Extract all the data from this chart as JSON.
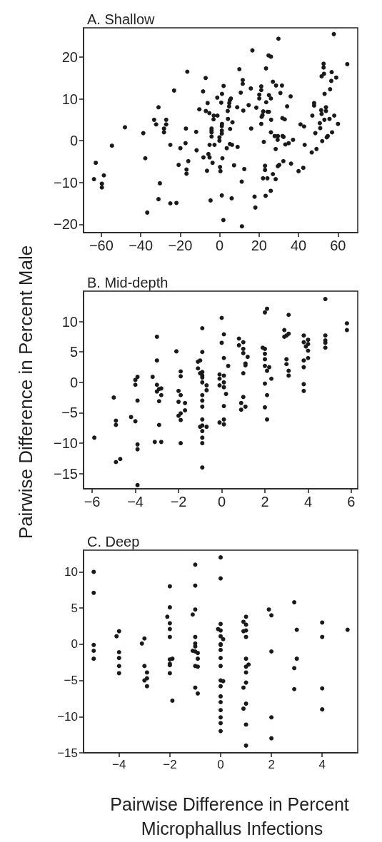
{
  "chart_data": [
    {
      "type": "scatter",
      "title": "A. Shallow",
      "color": "#1a1a1a",
      "marker": "circle",
      "xlim": [
        -69,
        70
      ],
      "xticks": [
        -60,
        -40,
        -20,
        0,
        20,
        40,
        60
      ],
      "ylim": [
        -22,
        27
      ],
      "yticks": [
        -20,
        -10,
        0,
        10,
        20
      ],
      "x": [
        -16.4,
        -7.1,
        -23.1,
        -8.4,
        -1.2,
        -6.1,
        -31.0,
        -10.3,
        -7.0,
        -5.2,
        -3.0,
        -1.1,
        -3.1,
        -33.2,
        -27.1,
        -32.2,
        -27.1,
        -48.0,
        -28.2,
        -17.1,
        -4.1,
        -4.1,
        -28.2,
        -11.9,
        -38.7,
        -4.1,
        -0.1,
        -0.1,
        -25.0,
        -17.3,
        -54.6,
        -5.1,
        -2.6,
        -19.9,
        -11.7,
        -5.7,
        -8.2,
        -5.1,
        -37.7,
        -15.9,
        -62.8,
        -3.6,
        -20.8,
        -16.8,
        -6.4,
        -16.8,
        -58.7,
        -63.7,
        -59.7,
        -59.7,
        -30.3,
        -31.0,
        -4.6,
        -25.0,
        -21.9,
        -36.7,
        57.9,
        29.8,
        16.6,
        24.8,
        26.0,
        64.7,
        52.7,
        52.7,
        23.5,
        10.0,
        56.8,
        52.9,
        51.7,
        59.1,
        11.7,
        11.7,
        56.6,
        27.0,
        28.6,
        31.6,
        2.0,
        21.1,
        15.8,
        21.1,
        56.0,
        10.7,
        30.8,
        1.2,
        53.2,
        20.1,
        25.0,
        36.0,
        5.7,
        20.1,
        26.0,
        5.2,
        0.8,
        23.6,
        4.9,
        47.9,
        47.9,
        4.8,
        14.7,
        8.9,
        34.2,
        18.6,
        12.0,
        53.9,
        51.5,
        53.9,
        51.7,
        4.1,
        22.1,
        24.3,
        25.0,
        21.7,
        21.3,
        4.2,
        31.8,
        33.0,
        47.0,
        53.1,
        58.1,
        55.7,
        26.1,
        6.5,
        1.2,
        1.1,
        21.1,
        50.8,
        60.0,
        41.0,
        42.8,
        16.0,
        5.3,
        51.0,
        -4.1,
        1.1,
        26.0,
        48.5,
        57.0,
        1.1,
        27.9,
        29.5,
        31.9,
        32.4,
        29.4,
        37.2,
        54.8,
        54.3,
        52.0,
        22.4,
        5.2,
        6.3,
        9.1,
        33.3,
        35.0,
        43.1,
        3.6,
        28.4,
        46.7,
        49.1,
        1.4,
        32.3,
        30.2,
        29.5,
        36.2,
        7.3,
        0.2,
        23.0,
        23.0,
        12.5,
        0.4,
        42.4,
        40.0,
        27.0,
        22.0,
        24.2,
        28.4,
        11.2,
        25.9,
        1.1,
        6.1,
        23.3,
        17.7,
        18.1,
        1.9,
        11.3
      ],
      "values": [
        16.5,
        15.0,
        12.0,
        11.8,
        10.3,
        9.0,
        8.0,
        7.5,
        7.1,
        6.6,
        6.0,
        6.0,
        5.1,
        5.0,
        5.0,
        3.9,
        3.9,
        3.2,
        2.9,
        2.9,
        2.9,
        2.0,
        2.0,
        2.1,
        1.8,
        1.0,
        0.8,
        0,
        -1.0,
        -0.6,
        -1.2,
        -1.0,
        -1.0,
        -1.8,
        -2.3,
        -3.2,
        -4.0,
        -4.0,
        -4.2,
        -4.9,
        -5.3,
        -5.3,
        -5.8,
        -6.9,
        -7.2,
        -7.9,
        -8.3,
        -9.2,
        -10.3,
        -11.2,
        -10.2,
        -14.0,
        -14.3,
        -15.0,
        -14.9,
        -17.2,
        25.5,
        24.4,
        21.6,
        20.4,
        20.1,
        18.3,
        18.4,
        17.5,
        17.3,
        17.1,
        16.4,
        16.0,
        15.4,
        15.1,
        14.5,
        13.6,
        14.3,
        14.1,
        13.2,
        13.2,
        13.1,
        13.0,
        12.5,
        12.1,
        12.3,
        11.5,
        11.4,
        11.2,
        11.2,
        11.0,
        10.9,
        10.6,
        10.1,
        10.1,
        10.1,
        9.7,
        9.1,
        9.2,
        9.0,
        9.0,
        8.4,
        8.2,
        8.5,
        8.0,
        8.2,
        7.9,
        7.2,
        8.0,
        7.3,
        7.1,
        6.4,
        7.1,
        7.0,
        6.9,
        6.9,
        6.1,
        5.7,
        5.2,
        5.4,
        5.1,
        6.0,
        5.0,
        6.0,
        5.2,
        5.0,
        4.4,
        4.0,
        3.5,
        4.0,
        4.2,
        4.0,
        3.9,
        3.4,
        2.9,
        2.8,
        3.0,
        2.4,
        2.4,
        2.0,
        1.8,
        2.0,
        1.7,
        1.1,
        1.1,
        1.1,
        0.9,
        0.2,
        0.2,
        1.1,
        0.8,
        -0.1,
        -0.3,
        -0.8,
        -1.0,
        -1.5,
        -0.9,
        -0.6,
        -1.0,
        -1.8,
        -2.0,
        -2.8,
        -2.0,
        -4.2,
        -4.9,
        -5.8,
        -6.1,
        -5.5,
        -5.9,
        -6.3,
        -6.0,
        -7.0,
        -6.8,
        -7.3,
        -6.5,
        -7.3,
        -8.0,
        -9.0,
        -9.0,
        -9.2,
        -9.8,
        -12.0,
        -13.1,
        -13.8,
        -13.2,
        -13.4,
        -16.0,
        -19.0,
        -20.5
      ]
    },
    {
      "type": "scatter",
      "title": "B. Mid-depth",
      "ylabel": "Pairwise Difference in Percent Male",
      "color": "#1a1a1a",
      "marker": "circle",
      "xlim": [
        -6.4,
        6.3
      ],
      "xticks": [
        -6,
        -4,
        -2,
        0,
        2,
        4,
        6
      ],
      "ylim": [
        -17.5,
        15
      ],
      "yticks": [
        -15,
        -10,
        -5,
        0,
        5,
        10
      ],
      "x": [
        -5.9,
        -5.0,
        -4.9,
        -4.9,
        -4.9,
        -4.7,
        -4.0,
        -3.9,
        -4.0,
        -3.9,
        -4.2,
        -4.0,
        -3.9,
        -3.9,
        -3.9,
        -3.2,
        -3.0,
        -3.0,
        -3.0,
        -3.0,
        -2.9,
        -2.8,
        -2.8,
        -2.9,
        -2.9,
        -3.1,
        -2.8,
        -2.1,
        -1.9,
        -1.9,
        -2.0,
        -1.9,
        -2.0,
        -1.7,
        -2.0,
        -1.9,
        -1.9,
        -1.7,
        -1.9,
        -1.1,
        -1.0,
        -1.1,
        -1.0,
        -0.9,
        -0.9,
        -0.9,
        -0.9,
        -0.7,
        -0.7,
        -0.9,
        -0.9,
        -0.9,
        -0.9,
        -0.9,
        -0.9,
        -1.0,
        -0.9,
        -0.7,
        -0.9,
        -0.9,
        -0.9,
        -0.9,
        -0.1,
        -0.1,
        -0.1,
        -0.1,
        0,
        0,
        0.1,
        0.1,
        0.3,
        0.1,
        0.1,
        0.1,
        0.2,
        0.1,
        0.1,
        0.1,
        0.8,
        0.8,
        1.0,
        1.0,
        1.0,
        1.2,
        1.1,
        1.1,
        1.0,
        1.0,
        0.9,
        1.1,
        0.9,
        2.0,
        2.1,
        1.9,
        2.0,
        2.0,
        2.0,
        2.0,
        2.2,
        2.1,
        2.3,
        2.0,
        2.1,
        2.0,
        2.1,
        3.1,
        2.9,
        2.9,
        3.0,
        3.1,
        3.0,
        3.0,
        3.1,
        3.1,
        3.8,
        3.8,
        4.0,
        3.9,
        4.0,
        4.0,
        3.8,
        4.0,
        3.8,
        3.8,
        3.8,
        4.8,
        4.8,
        4.8,
        4.8,
        4.8,
        5.8,
        5.8
      ],
      "values": [
        -9.1,
        -2.5,
        -6.3,
        -7.0,
        -13.1,
        -12.6,
        0.4,
        0.9,
        -0.4,
        -3.0,
        -5.7,
        -6.4,
        -10.2,
        -11.0,
        -16.9,
        0.9,
        7.5,
        3.6,
        -0.4,
        -1.5,
        -1.1,
        -1.0,
        -2.1,
        -3.1,
        -7.0,
        -9.8,
        -9.8,
        5.1,
        1.8,
        1.0,
        -1.4,
        -2.1,
        -3.2,
        -3.4,
        -5.5,
        -5.1,
        -6.2,
        -4.6,
        -10.0,
        3.4,
        3.6,
        2.3,
        1.5,
        1.7,
        1.1,
        0.8,
        0,
        -0.5,
        -1.3,
        8.9,
        5.0,
        -2.1,
        -3.0,
        -4.0,
        -6.1,
        -7.3,
        -7.1,
        -7.3,
        -8.0,
        -9.1,
        -10.0,
        -14.0,
        1.3,
        0.6,
        -0.5,
        -6.6,
        10.6,
        6.5,
        7.9,
        4.0,
        2.7,
        1.1,
        0,
        -0.8,
        -1.9,
        -3.9,
        -6.1,
        -6.9,
        7.2,
        6.1,
        6.6,
        5.5,
        4.8,
        4.2,
        3.1,
        2.8,
        1.5,
        -2.4,
        -3.4,
        -4.0,
        -4.5,
        11.5,
        12.1,
        5.7,
        5.5,
        4.7,
        3.8,
        2.7,
        2.5,
        1.9,
        0.6,
        -0.2,
        -2.1,
        -4.1,
        -6.1,
        11.1,
        8.6,
        7.5,
        7.7,
        8.0,
        3.8,
        3.0,
        1.9,
        1.1,
        7.7,
        6.6,
        7.0,
        5.9,
        6.3,
        5.2,
        3.6,
        4.0,
        2.5,
        -0.3,
        -1.4,
        13.7,
        7.7,
        6.9,
        6.5,
        5.7,
        9.7,
        8.6
      ]
    },
    {
      "type": "scatter",
      "title": "C. Deep",
      "xlabel": "Pairwise Difference in Percent Microphallus Infections",
      "color": "#1a1a1a",
      "marker": "circle",
      "xlim": [
        -5.4,
        5.4
      ],
      "xticks": [
        -4,
        -2,
        0,
        2,
        4
      ],
      "ylim": [
        -15,
        13
      ],
      "yticks": [
        -15,
        -10,
        -5,
        0,
        5,
        10
      ],
      "x": [
        -5,
        -5,
        -5,
        -5,
        -5,
        -4.1,
        -4,
        -4,
        -4,
        -4,
        -4,
        -3.1,
        -3,
        -3,
        -2.9,
        -2.9,
        -3,
        -2.9,
        -2,
        -2,
        -2.1,
        -2,
        -2,
        -2,
        -2,
        -1.9,
        -2,
        -2,
        -2,
        -1.9,
        -1,
        -1,
        -1,
        -1.1,
        -1,
        -1,
        -1,
        -1.1,
        -1,
        -0.9,
        -0.9,
        -1,
        -0.9,
        -1,
        -0.9,
        0,
        0,
        0,
        -0.1,
        0,
        0,
        0.1,
        0,
        0,
        0,
        0,
        0,
        0,
        0.1,
        0,
        0,
        0,
        0,
        0,
        0,
        0,
        1,
        0.9,
        1,
        0.9,
        1,
        1,
        1,
        1.1,
        1,
        1,
        1,
        0.9,
        1,
        0.9,
        1,
        1,
        1.9,
        2,
        2,
        2,
        2,
        2.9,
        3,
        3,
        2.9,
        2.9,
        4,
        4,
        4,
        4,
        5
      ],
      "values": [
        10,
        7.1,
        -0.1,
        -0.9,
        -2.0,
        1.1,
        1.8,
        -1.1,
        -1.9,
        -3.0,
        -4.0,
        0.1,
        0.8,
        -3.0,
        -3.9,
        -4.7,
        -5.0,
        -5.8,
        8.0,
        5.1,
        3.8,
        2.9,
        2.1,
        1.0,
        -2.1,
        -2.0,
        -2.7,
        -2.9,
        -4.0,
        -7.8,
        11.0,
        8.1,
        4.8,
        4.1,
        1.0,
        0.1,
        -0.3,
        -0.9,
        -1.0,
        -1.2,
        -2.0,
        -3.0,
        -3.1,
        -6.0,
        -6.8,
        12.0,
        9.1,
        2.8,
        2.1,
        1.9,
        1.1,
        0.7,
        0,
        -0.1,
        -0.8,
        -1.9,
        -3.0,
        -5.0,
        -5.1,
        -5.8,
        -7.2,
        -8.0,
        -9.1,
        -10.1,
        -10.9,
        -12.0,
        3.8,
        3.1,
        2.7,
        1.8,
        1.9,
        1.0,
        -2.0,
        -2.8,
        -3.1,
        -3.9,
        -5.3,
        -6.0,
        -8.2,
        -8.9,
        -11.1,
        -14.0,
        4.8,
        4.0,
        -1.0,
        -10.1,
        -13.0,
        5.8,
        2.0,
        -2.0,
        -3.3,
        -6.2,
        3.0,
        1.0,
        -6.1,
        -9.0,
        2.0
      ]
    }
  ]
}
